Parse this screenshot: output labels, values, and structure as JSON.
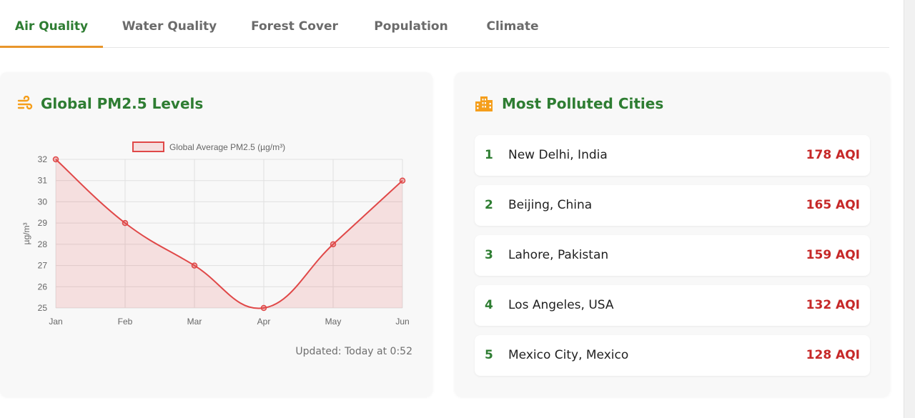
{
  "tabs": [
    {
      "label": "Air Quality",
      "active": true
    },
    {
      "label": "Water Quality",
      "active": false
    },
    {
      "label": "Forest Cover",
      "active": false
    },
    {
      "label": "Population",
      "active": false
    },
    {
      "label": "Climate",
      "active": false
    }
  ],
  "pm_card": {
    "title": "Global PM2.5 Levels",
    "icon": "wind-icon",
    "updated": "Updated: Today at 0:52"
  },
  "cities_card": {
    "title": "Most Polluted Cities",
    "icon": "city-buildings-icon",
    "items": [
      {
        "rank": "1",
        "city": "New Delhi, India",
        "aqi": "178 AQI"
      },
      {
        "rank": "2",
        "city": "Beijing, China",
        "aqi": "165 AQI"
      },
      {
        "rank": "3",
        "city": "Lahore, Pakistan",
        "aqi": "159 AQI"
      },
      {
        "rank": "4",
        "city": "Los Angeles, USA",
        "aqi": "132 AQI"
      },
      {
        "rank": "5",
        "city": "Mexico City, Mexico",
        "aqi": "128 AQI"
      }
    ]
  },
  "colors": {
    "accent_green": "#2e7d32",
    "tab_underline": "#e8952b",
    "aqi_red": "#c62828",
    "line_red": "#e04848",
    "icon_orange": "#f59e1b"
  },
  "chart_data": {
    "type": "line",
    "categories": [
      "Jan",
      "Feb",
      "Mar",
      "Apr",
      "May",
      "Jun"
    ],
    "series": [
      {
        "name": "Global Average PM2.5 (µg/m³)",
        "values": [
          32,
          29,
          27,
          25,
          28,
          31
        ]
      }
    ],
    "ylabel": "µg/m³",
    "ylim": [
      25,
      32
    ],
    "yticks": [
      "25",
      "26",
      "27",
      "28",
      "29",
      "30",
      "31",
      "32"
    ],
    "grid": true,
    "fill": true,
    "legend": "top"
  }
}
